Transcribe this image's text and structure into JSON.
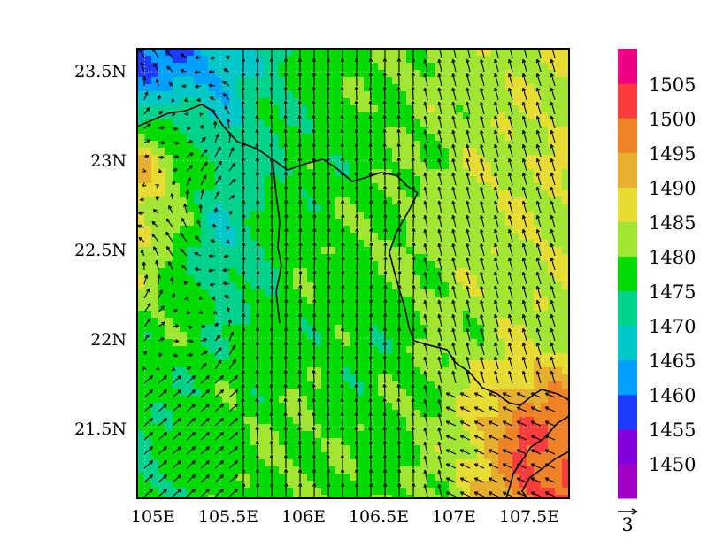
{
  "chart_data": {
    "type": "heatmap",
    "title": "",
    "xlabel": "",
    "ylabel": "",
    "x_range": [
      104.95,
      107.8
    ],
    "y_range": [
      21.1,
      23.63
    ],
    "x_ticks": [
      {
        "value": 105.0,
        "label": "105E"
      },
      {
        "value": 105.5,
        "label": "105.5E"
      },
      {
        "value": 106.0,
        "label": "106E"
      },
      {
        "value": 106.5,
        "label": "106.5E"
      },
      {
        "value": 107.0,
        "label": "107E"
      },
      {
        "value": 107.5,
        "label": "107.5E"
      }
    ],
    "y_ticks": [
      {
        "value": 21.5,
        "label": "21.5N"
      },
      {
        "value": 22.0,
        "label": "22N"
      },
      {
        "value": 22.5,
        "label": "22.5N"
      },
      {
        "value": 23.0,
        "label": "23N"
      },
      {
        "value": 23.5,
        "label": "23.5N"
      }
    ],
    "grid": "dotted",
    "colorbar": {
      "levels": [
        1450,
        1455,
        1460,
        1465,
        1470,
        1475,
        1480,
        1485,
        1490,
        1495,
        1500,
        1505
      ],
      "labels": [
        "1450",
        "1455",
        "1460",
        "1465",
        "1470",
        "1475",
        "1480",
        "1485",
        "1490",
        "1495",
        "1500",
        "1505"
      ],
      "colors": [
        "#a000c8",
        "#8200dc",
        "#1e3cff",
        "#00a0ff",
        "#00c8c8",
        "#00d28c",
        "#00dc00",
        "#a0e632",
        "#e6dc32",
        "#e6af2d",
        "#f08228",
        "#fa3c3c",
        "#f00082"
      ]
    },
    "vector_reference": {
      "label": "3",
      "magnitude": 3
    },
    "field_samples": {
      "lon": [
        105.0,
        105.5,
        106.0,
        106.5,
        107.0,
        107.5
      ],
      "lat": [
        21.5,
        22.0,
        22.5,
        23.0,
        23.5
      ],
      "values": [
        [
          1475,
          1478,
          1480,
          1478,
          1482,
          1500
        ],
        [
          1478,
          1476,
          1478,
          1476,
          1481,
          1484
        ],
        [
          1485,
          1470,
          1478,
          1480,
          1483,
          1484
        ],
        [
          1490,
          1472,
          1476,
          1478,
          1482,
          1485
        ],
        [
          1458,
          1466,
          1476,
          1480,
          1482,
          1484
        ]
      ]
    },
    "series": [
      {
        "name": "",
        "type": "wind-vectors"
      }
    ]
  },
  "colors": {
    "background": "#ffffff",
    "frame": "#000000",
    "border_line": "#000000",
    "grid": "#c8c8c8"
  }
}
